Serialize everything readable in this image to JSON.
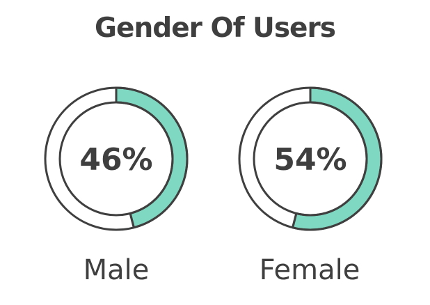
{
  "chart_data": {
    "type": "pie",
    "title": "Gender Of Users",
    "categories": [
      "Male",
      "Female"
    ],
    "values": [
      46,
      54
    ],
    "value_labels": [
      "46%",
      "54%"
    ],
    "unit": "%",
    "colors": {
      "fill": "#7fd9c2",
      "track": "#ffffff",
      "stroke": "#3f3f3f",
      "text": "#3f3f3f"
    }
  }
}
